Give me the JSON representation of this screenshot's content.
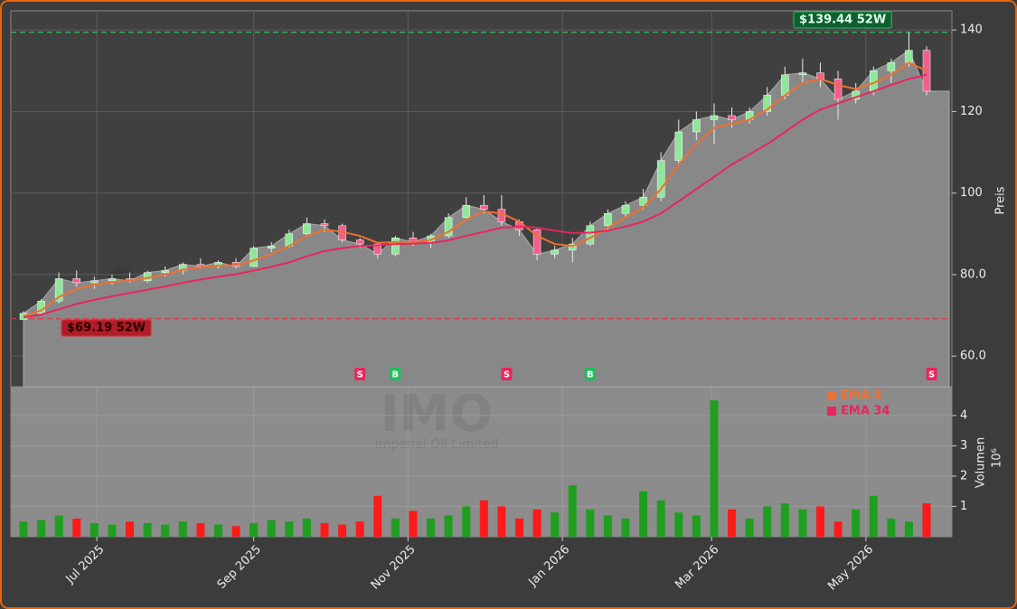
{
  "chart_data": {
    "type": "candlestick",
    "x": [
      "2025-06-02",
      "2025-06-09",
      "2025-06-16",
      "2025-06-23",
      "2025-06-30",
      "2025-07-07",
      "2025-07-14",
      "2025-07-21",
      "2025-07-28",
      "2025-08-04",
      "2025-08-11",
      "2025-08-18",
      "2025-08-25",
      "2025-09-01",
      "2025-09-08",
      "2025-09-15",
      "2025-09-22",
      "2025-09-29",
      "2025-10-06",
      "2025-10-13",
      "2025-10-20",
      "2025-10-27",
      "2025-11-03",
      "2025-11-10",
      "2025-11-17",
      "2025-11-24",
      "2025-12-01",
      "2025-12-08",
      "2025-12-15",
      "2025-12-22",
      "2025-12-29",
      "2026-01-05",
      "2026-01-12",
      "2026-01-19",
      "2026-01-26",
      "2026-02-02",
      "2026-02-09",
      "2026-02-16",
      "2026-02-23",
      "2026-03-02",
      "2026-03-09",
      "2026-03-16",
      "2026-03-23",
      "2026-03-30",
      "2026-04-06",
      "2026-04-13",
      "2026-04-20",
      "2026-04-27",
      "2026-05-04",
      "2026-05-11",
      "2026-05-18",
      "2026-05-25"
    ],
    "open": [
      69,
      70.5,
      73.5,
      79,
      78,
      78.5,
      79,
      78.5,
      80.5,
      81,
      82.5,
      82,
      83,
      82,
      86.5,
      87,
      90,
      92.5,
      92,
      88.5,
      87.5,
      85,
      89,
      88,
      89.5,
      94,
      97,
      96,
      93,
      91,
      85,
      86,
      87.5,
      92,
      95,
      97,
      99,
      108,
      115,
      118,
      119,
      118,
      120,
      124,
      129,
      129.5,
      128,
      123,
      125,
      130,
      132,
      135
    ],
    "high": [
      71,
      74,
      80.5,
      81,
      79.5,
      80,
      80.5,
      81,
      82,
      83,
      84,
      83.5,
      84,
      87,
      88,
      91,
      94,
      93.5,
      92.5,
      89,
      88,
      89.5,
      90.5,
      90,
      95,
      99,
      99.5,
      99.5,
      93.5,
      91.5,
      87,
      89,
      93,
      96,
      98,
      101,
      110,
      118,
      120,
      122,
      121,
      121,
      126,
      131,
      133,
      132,
      130,
      127,
      131,
      133,
      139.44,
      136
    ],
    "low": [
      69.19,
      70,
      73,
      77,
      76.5,
      77.5,
      78,
      78,
      79.5,
      80,
      81.5,
      81.5,
      81.5,
      82,
      85.5,
      86.5,
      89.5,
      90.5,
      88,
      86.5,
      84,
      84.5,
      87,
      86.5,
      89,
      93.5,
      95,
      92,
      89.5,
      83.5,
      84,
      83,
      87,
      91,
      94,
      96,
      98,
      107,
      113,
      112,
      116,
      117,
      119,
      123,
      127,
      126,
      118,
      122,
      124,
      127,
      131,
      124
    ],
    "close": [
      70.5,
      73.5,
      79,
      78,
      78.5,
      79,
      78.5,
      80.5,
      81,
      82.5,
      82,
      83,
      82,
      86.5,
      87,
      90,
      92.5,
      92,
      88.5,
      87.5,
      85,
      89,
      88,
      89.5,
      94,
      97,
      96,
      93,
      91,
      85,
      86,
      87.5,
      92,
      95,
      97,
      99,
      108,
      115,
      118,
      119,
      118,
      120,
      124,
      129,
      129.5,
      128,
      123,
      125,
      130,
      132,
      135,
      125
    ],
    "series": [
      {
        "name": "EMA 8",
        "color": "#f07030",
        "values": [
          69.8,
          71.2,
          74.5,
          76.5,
          77.5,
          78.2,
          78.5,
          79.2,
          80,
          81.2,
          81.8,
          82.2,
          82.3,
          83.5,
          85,
          87,
          89.5,
          91,
          90.5,
          89.5,
          87.8,
          88,
          88,
          88.5,
          90.5,
          93.5,
          95.5,
          95,
          93,
          89.5,
          87.5,
          87,
          89,
          91.5,
          94,
          96.5,
          101,
          107,
          112,
          116,
          117,
          118,
          120.5,
          124,
          127,
          128,
          126.5,
          125.5,
          127,
          129,
          132,
          130
        ]
      },
      {
        "name": "EMA 34",
        "color": "#e8265e",
        "values": [
          69.5,
          70.2,
          71.5,
          72.8,
          73.8,
          74.7,
          75.5,
          76.3,
          77.1,
          78,
          78.8,
          79.5,
          80.1,
          81,
          81.9,
          83,
          84.5,
          85.8,
          86.5,
          87,
          87.2,
          87.5,
          87.6,
          87.8,
          88.4,
          89.5,
          90.5,
          91.5,
          91.8,
          91.5,
          90.8,
          90.2,
          90.3,
          90.8,
          91.8,
          93,
          95,
          98,
          101,
          104,
          107,
          109.5,
          112,
          115,
          118,
          120.5,
          122,
          123.5,
          125,
          126.5,
          128,
          129
        ]
      }
    ],
    "ylabel": "Preis",
    "ylim": [
      52.5,
      144.7
    ],
    "yticks": [
      {
        "value": 60,
        "label": "60.0"
      },
      {
        "value": 80,
        "label": "80.0"
      },
      100,
      120,
      140
    ],
    "xlim": [
      "2025-05-28",
      "2026-06-04"
    ],
    "xticks": [
      {
        "value": "2025-07-01",
        "label": "Jul 2025"
      },
      {
        "value": "2025-09-01",
        "label": "Sep 2025"
      },
      {
        "value": "2025-11-01",
        "label": "Nov 2025"
      },
      {
        "value": "2026-01-01",
        "label": "Jan 2026"
      },
      {
        "value": "2026-03-01",
        "label": "Mar 2026"
      },
      {
        "value": "2026-05-01",
        "label": "May 2026"
      }
    ],
    "up_color": "#8fe89a",
    "down_color": "#f2608a",
    "annotations": [
      {
        "text": "$139.44 52W",
        "value": 139.44,
        "color": "#2fbf5a"
      },
      {
        "text": "$69.19 52W",
        "value": 69.19,
        "color": "#e03040"
      }
    ],
    "signals": [
      {
        "x": "2025-10-13",
        "label": "S"
      },
      {
        "x": "2025-10-27",
        "label": "B"
      },
      {
        "x": "2025-12-10",
        "label": "S"
      },
      {
        "x": "2026-01-12",
        "label": "B"
      },
      {
        "x": "2026-05-27",
        "label": "S"
      }
    ],
    "watermark": "forexsignale.trade",
    "symbol": "IMO",
    "company": "Imperial Oil Limited",
    "volume": {
      "values": [
        0.5,
        0.55,
        0.7,
        0.6,
        0.45,
        0.4,
        0.5,
        0.45,
        0.4,
        0.5,
        0.45,
        0.4,
        0.35,
        0.45,
        0.55,
        0.5,
        0.6,
        0.45,
        0.4,
        0.5,
        1.35,
        0.6,
        0.85,
        0.6,
        0.7,
        1.0,
        1.2,
        1.0,
        0.6,
        0.9,
        0.8,
        1.7,
        0.9,
        0.7,
        0.6,
        1.5,
        1.2,
        0.8,
        0.7,
        4.5,
        0.9,
        0.6,
        1.0,
        1.1,
        0.9,
        1.0,
        0.5,
        0.9,
        1.35,
        0.6,
        0.5,
        1.1
      ],
      "ylabel": "Volumen",
      "unit": "10⁶",
      "ylim": [
        0,
        4.95
      ],
      "yticks": [
        1,
        2,
        3,
        4
      ],
      "up_color": "#1f9e1f",
      "down_color": "#ff1a1a"
    }
  }
}
